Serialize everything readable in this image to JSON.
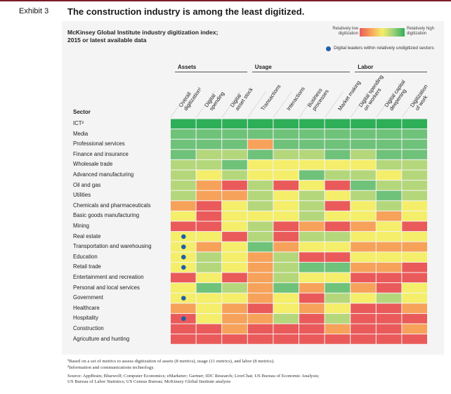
{
  "exhibit": "Exhibit 3",
  "headline": "The construction industry is among the least digitized.",
  "subtitle_line1": "McKinsey Global Institute industry digitization index;",
  "subtitle_line2": "2015 or latest available data",
  "legend": {
    "low_line1": "Relatively low",
    "low_line2": "digitization",
    "high_line1": "Relatively high",
    "high_line2": "digitization",
    "dot_label": "Digital leaders within relatively undigitized sectors",
    "dot_color": "#1f5fa8"
  },
  "colors": {
    "1": "#ea5a5a",
    "2": "#f7a25a",
    "3": "#f4ee6a",
    "4": "#b5d77c",
    "5": "#6fc27a",
    "6": "#2fae58"
  },
  "groups": [
    {
      "name": "Assets",
      "start": 0,
      "end": 2
    },
    {
      "name": "Usage",
      "start": 3,
      "end": 6
    },
    {
      "name": "Labor",
      "start": 7,
      "end": 9
    }
  ],
  "sector_header": "Sector",
  "chart_data": {
    "type": "heatmap",
    "title": "McKinsey Global Institute industry digitization index; 2015 or latest available data",
    "columns": [
      [
        "Overall",
        "digitization¹"
      ],
      [
        "Digital",
        "spending"
      ],
      [
        "Digital",
        "asset stock"
      ],
      [
        "Transactions"
      ],
      [
        "Interactions"
      ],
      [
        "Business",
        "processes"
      ],
      [
        "Market making"
      ],
      [
        "Digital spending",
        "on workers"
      ],
      [
        "Digital capital",
        "deepening"
      ],
      [
        "Digitization",
        "of work"
      ]
    ],
    "value_scale": "1 = relatively low digitization, 6 = relatively high digitization",
    "rows": [
      {
        "sector": "ICT²",
        "values": [
          6,
          6,
          6,
          6,
          6,
          6,
          6,
          6,
          6,
          6
        ],
        "digital_leader": false
      },
      {
        "sector": "Media",
        "values": [
          5,
          5,
          5,
          5,
          5,
          5,
          5,
          5,
          5,
          5
        ],
        "digital_leader": false
      },
      {
        "sector": "Professional services",
        "values": [
          5,
          5,
          5,
          2,
          5,
          5,
          5,
          5,
          5,
          5
        ],
        "digital_leader": false
      },
      {
        "sector": "Finance and insurance",
        "values": [
          5,
          4,
          4,
          5,
          4,
          4,
          5,
          4,
          5,
          5
        ],
        "digital_leader": false
      },
      {
        "sector": "Wholesale trade",
        "values": [
          4,
          4,
          5,
          3,
          3,
          3,
          3,
          3,
          4,
          4
        ],
        "digital_leader": false
      },
      {
        "sector": "Advanced manufacturing",
        "values": [
          4,
          3,
          4,
          3,
          3,
          5,
          4,
          4,
          3,
          4
        ],
        "digital_leader": false
      },
      {
        "sector": "Oil and gas",
        "values": [
          4,
          2,
          1,
          4,
          1,
          3,
          1,
          5,
          4,
          4
        ],
        "digital_leader": false
      },
      {
        "sector": "Utilities",
        "values": [
          4,
          2,
          2,
          4,
          3,
          4,
          3,
          4,
          5,
          4
        ],
        "digital_leader": false
      },
      {
        "sector": "Chemicals and pharmaceuticals",
        "values": [
          2,
          1,
          3,
          4,
          3,
          4,
          1,
          3,
          4,
          3
        ],
        "digital_leader": false
      },
      {
        "sector": "Basic goods manufacturing",
        "values": [
          3,
          1,
          3,
          3,
          3,
          4,
          3,
          3,
          2,
          3
        ],
        "digital_leader": false
      },
      {
        "sector": "Mining",
        "values": [
          1,
          1,
          3,
          4,
          1,
          2,
          1,
          2,
          3,
          1
        ],
        "digital_leader": false
      },
      {
        "sector": "Real estate",
        "values": [
          3,
          3,
          1,
          4,
          1,
          4,
          4,
          3,
          3,
          3
        ],
        "digital_leader": true
      },
      {
        "sector": "Transportation and warehousing",
        "values": [
          3,
          2,
          3,
          5,
          2,
          3,
          3,
          2,
          2,
          2
        ],
        "digital_leader": true
      },
      {
        "sector": "Education",
        "values": [
          3,
          4,
          3,
          2,
          4,
          1,
          1,
          3,
          3,
          3
        ],
        "digital_leader": true
      },
      {
        "sector": "Retail trade",
        "values": [
          3,
          4,
          3,
          2,
          4,
          5,
          5,
          2,
          2,
          1
        ],
        "digital_leader": true
      },
      {
        "sector": "Entertainment and recreation",
        "values": [
          1,
          3,
          1,
          2,
          4,
          3,
          3,
          1,
          1,
          1
        ],
        "digital_leader": false
      },
      {
        "sector": "Personal and local services",
        "values": [
          3,
          5,
          4,
          2,
          5,
          2,
          5,
          2,
          1,
          3
        ],
        "digital_leader": false
      },
      {
        "sector": "Government",
        "values": [
          3,
          3,
          3,
          2,
          3,
          1,
          4,
          3,
          4,
          3
        ],
        "digital_leader": true
      },
      {
        "sector": "Healthcare",
        "values": [
          2,
          3,
          2,
          1,
          3,
          2,
          3,
          1,
          1,
          2
        ],
        "digital_leader": false
      },
      {
        "sector": "Hospitality",
        "values": [
          1,
          3,
          2,
          2,
          4,
          1,
          4,
          1,
          1,
          1
        ],
        "digital_leader": true
      },
      {
        "sector": "Construction",
        "values": [
          1,
          1,
          2,
          1,
          1,
          1,
          2,
          1,
          1,
          2
        ],
        "digital_leader": false
      },
      {
        "sector": "Agriculture and hunting",
        "values": [
          1,
          1,
          1,
          1,
          1,
          1,
          1,
          1,
          1,
          1
        ],
        "digital_leader": false
      }
    ]
  },
  "footnotes": {
    "note1": "¹Based on a set of metrics to assess digitization of assets (8 metrics), usage (11 metrics), and labor (8 metrics).",
    "note2": "²Information and communications technology.",
    "source_line1": "Source: AppBrain; Bluewolf; Computer Economics; eMarketer; Gartner; IDC Research; LiveChat; US Bureau of Economic Analysis;",
    "source_line2": "US Bureau of Labor Statistics; US Census Bureau; McKinsey Global Institute analysis"
  }
}
